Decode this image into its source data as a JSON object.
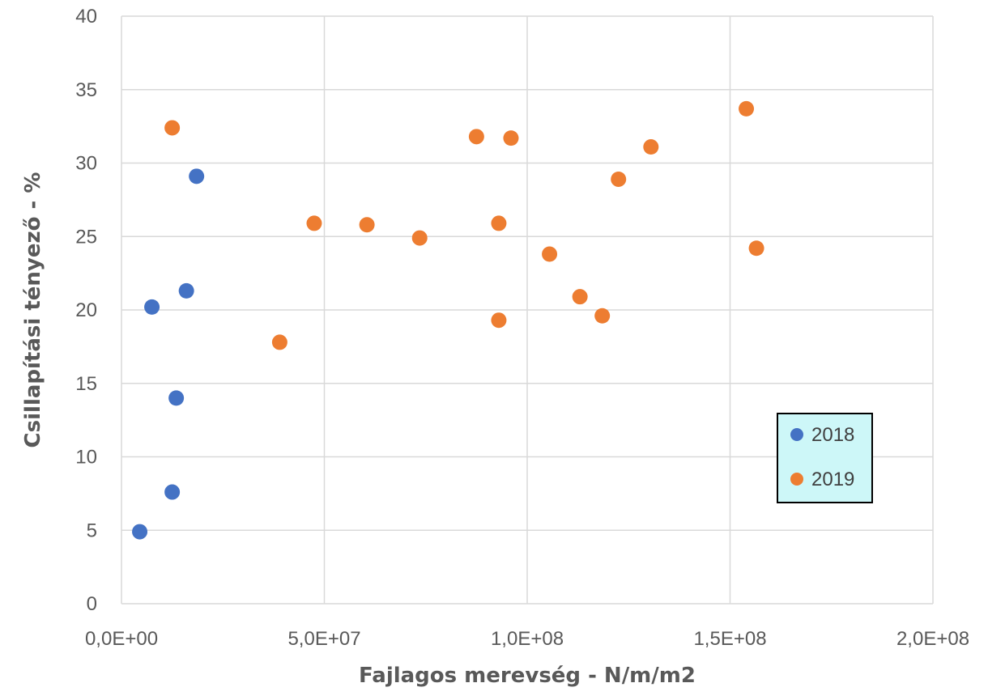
{
  "chart_data": {
    "type": "scatter",
    "xlabel": "Fajlagos merevség  -  N/m/m2",
    "ylabel": "Csillapítási tényező  -  %",
    "xlim": [
      0,
      200000000
    ],
    "ylim": [
      0,
      40
    ],
    "x_ticks": [
      0,
      50000000,
      100000000,
      150000000,
      200000000
    ],
    "x_tick_labels": [
      "0,0E+00",
      "5,0E+07",
      "1,0E+08",
      "1,5E+08",
      "2,0E+08"
    ],
    "y_ticks": [
      0,
      5,
      10,
      15,
      20,
      25,
      30,
      35,
      40
    ],
    "y_tick_labels": [
      "0",
      "5",
      "10",
      "15",
      "20",
      "25",
      "30",
      "35",
      "40"
    ],
    "grid": true,
    "legend_position": "right, lower-middle",
    "series": [
      {
        "name": "2018",
        "color": "#4472C4",
        "points": [
          [
            4500000,
            4.9
          ],
          [
            12500000,
            7.6
          ],
          [
            13500000,
            14.0
          ],
          [
            7500000,
            20.2
          ],
          [
            16000000,
            21.3
          ],
          [
            18500000,
            29.1
          ]
        ]
      },
      {
        "name": "2019",
        "color": "#ED7D31",
        "points": [
          [
            12500000,
            32.4
          ],
          [
            39000000,
            17.8
          ],
          [
            47500000,
            25.9
          ],
          [
            60500000,
            25.8
          ],
          [
            73500000,
            24.9
          ],
          [
            87500000,
            31.8
          ],
          [
            93000000,
            25.9
          ],
          [
            93000000,
            19.3
          ],
          [
            96000000,
            31.7
          ],
          [
            105500000,
            23.8
          ],
          [
            113000000,
            20.9
          ],
          [
            118500000,
            19.6
          ],
          [
            122500000,
            28.9
          ],
          [
            130500000,
            31.1
          ],
          [
            154000000,
            33.7
          ],
          [
            156500000,
            24.2
          ]
        ]
      }
    ]
  }
}
